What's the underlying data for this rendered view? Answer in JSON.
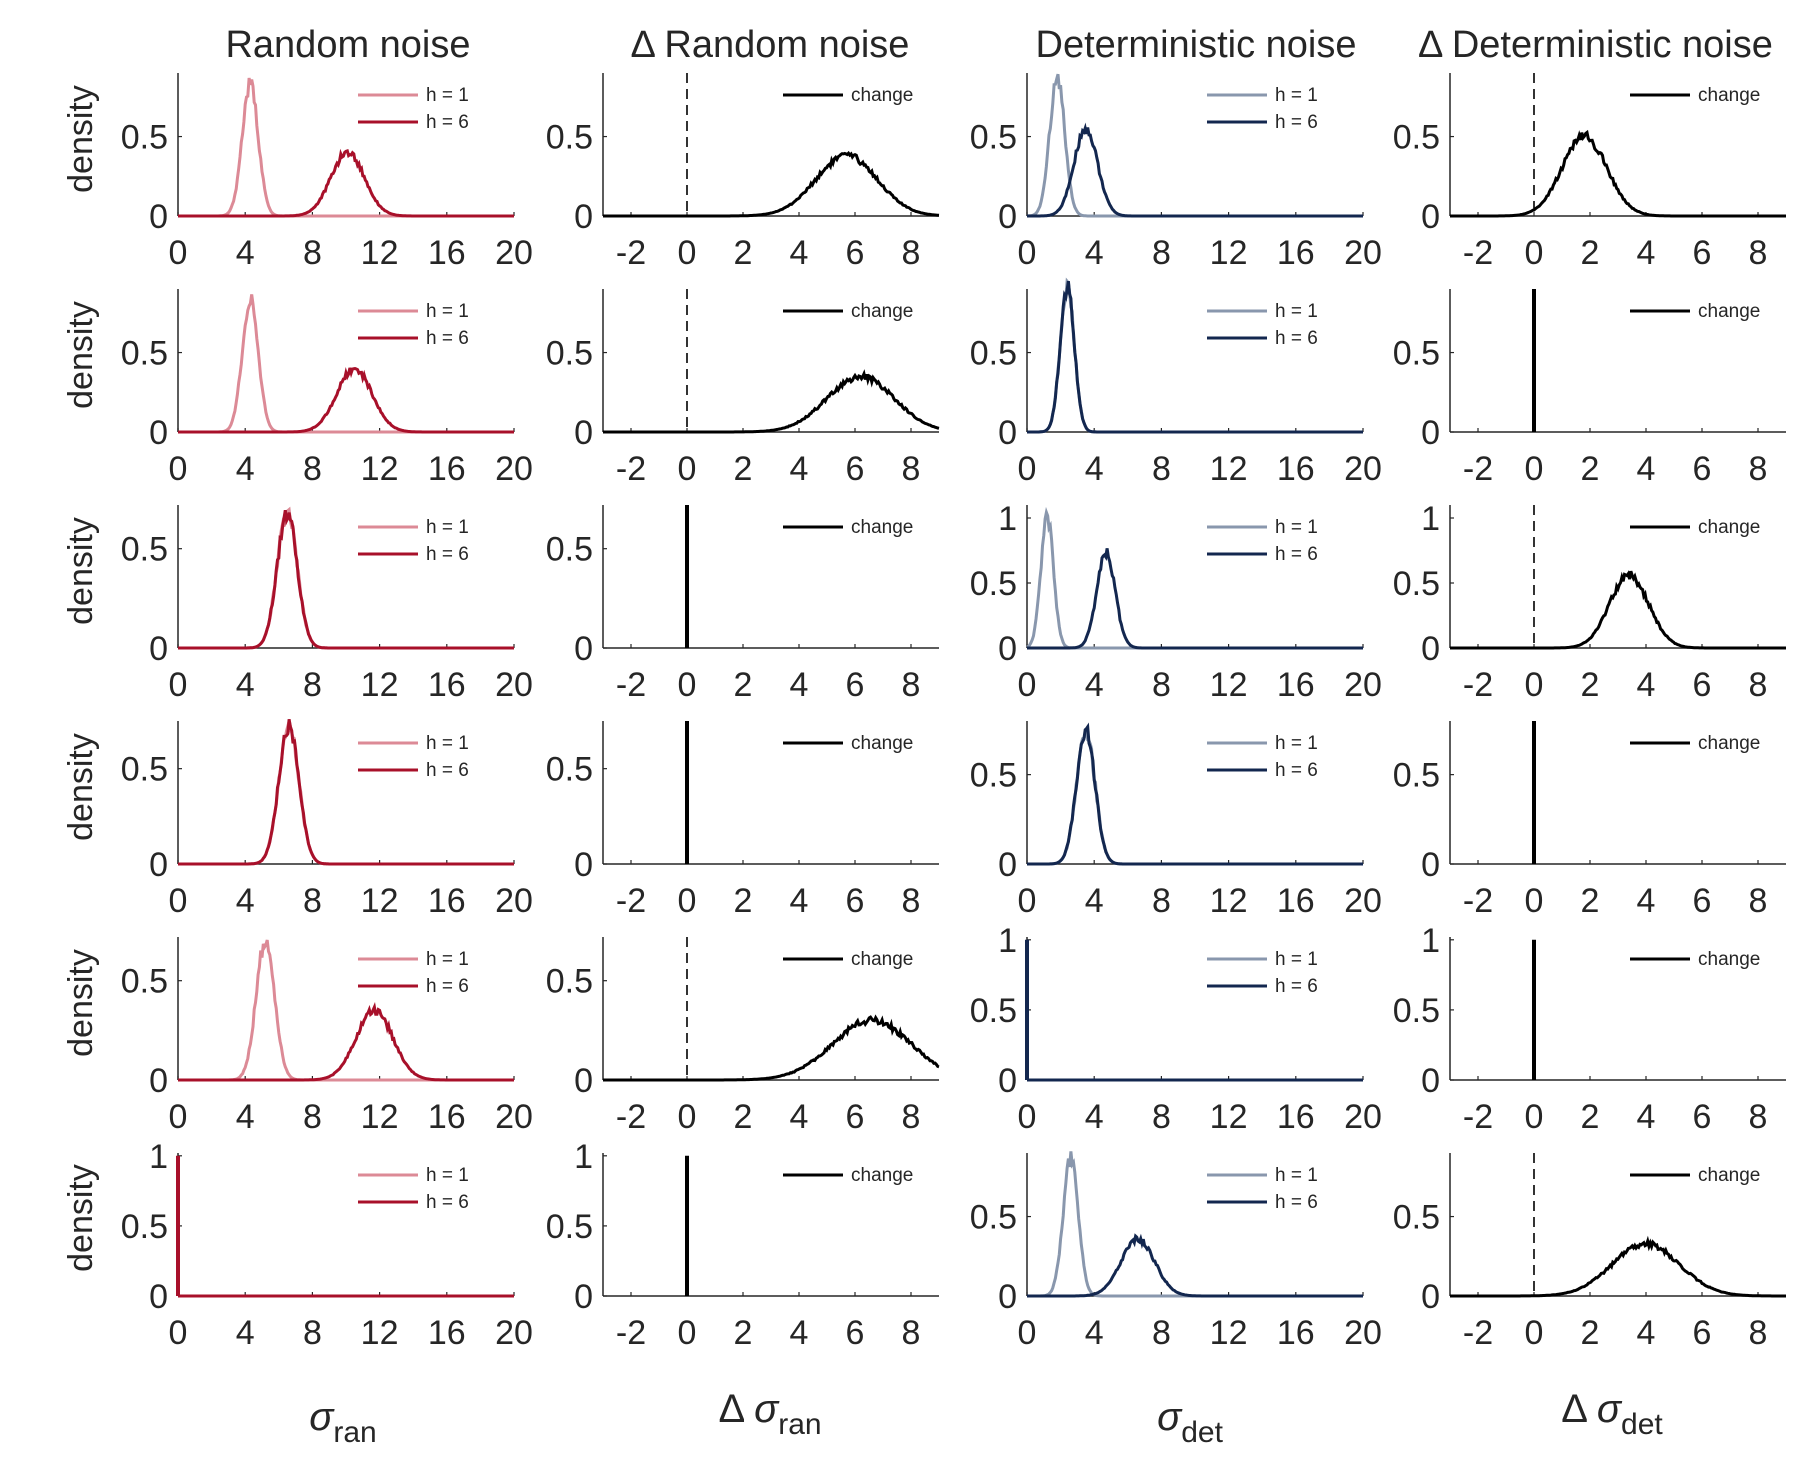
{
  "columns": [
    {
      "title": "Random noise",
      "xlabel_prefix": "",
      "xlabel_symbol": "σ",
      "xlabel_sub": "ran"
    },
    {
      "title": "Δ Random noise",
      "xlabel_prefix": "Δ",
      "xlabel_symbol": "σ",
      "xlabel_sub": "ran"
    },
    {
      "title": "Deterministic noise",
      "xlabel_prefix": "",
      "xlabel_symbol": "σ",
      "xlabel_sub": "det"
    },
    {
      "title": "Δ Deterministic noise",
      "xlabel_prefix": "Δ",
      "xlabel_symbol": "σ",
      "xlabel_sub": "det"
    }
  ],
  "colors": {
    "ran_h1": "#DC8A96",
    "ran_h6": "#A8102A",
    "det_h1": "#8997AD",
    "det_h6": "#13274F",
    "change": "#000000",
    "axis": "#262626"
  },
  "chart_data": {
    "type": "line",
    "ylabel": "density",
    "legend_entries_abs": [
      "h = 1",
      "h = 6"
    ],
    "legend_entry_change": "change",
    "legend_placement": "top-right",
    "grid": false,
    "abs_xlim": [
      0,
      20
    ],
    "abs_xticks": [
      0,
      4,
      8,
      12,
      16,
      20
    ],
    "delta_xlim": [
      -3,
      9
    ],
    "delta_xticks": [
      -2,
      0,
      2,
      4,
      6,
      8
    ],
    "rows": [
      {
        "ran": {
          "ylim": [
            0,
            0.9
          ],
          "yticks": [
            0,
            0.5
          ],
          "h1": {
            "mean": 4.3,
            "sd": 0.48,
            "peak": 0.83
          },
          "h6": {
            "mean": 10.1,
            "sd": 1.0,
            "peak": 0.4
          }
        },
        "dran": {
          "ylim": [
            0,
            0.9
          ],
          "yticks": [
            0,
            0.5
          ],
          "dashed_zero": true,
          "change": {
            "mean": 5.7,
            "sd": 1.1,
            "peak": 0.38
          }
        },
        "det": {
          "ylim": [
            0,
            0.9
          ],
          "yticks": [
            0,
            0.5
          ],
          "h1": {
            "mean": 1.8,
            "sd": 0.45,
            "peak": 0.88
          },
          "h6": {
            "mean": 3.5,
            "sd": 0.7,
            "peak": 0.55
          }
        },
        "ddet": {
          "ylim": [
            0,
            0.9
          ],
          "yticks": [
            0,
            0.5
          ],
          "dashed_zero": true,
          "change": {
            "mean": 1.8,
            "sd": 0.8,
            "peak": 0.5
          }
        }
      },
      {
        "ran": {
          "ylim": [
            0,
            0.9
          ],
          "yticks": [
            0,
            0.5
          ],
          "h1": {
            "mean": 4.3,
            "sd": 0.48,
            "peak": 0.83
          },
          "h6": {
            "mean": 10.5,
            "sd": 1.05,
            "peak": 0.4
          }
        },
        "dran": {
          "ylim": [
            0,
            0.9
          ],
          "yticks": [
            0,
            0.5
          ],
          "dashed_zero": true,
          "change": {
            "mean": 6.2,
            "sd": 1.2,
            "peak": 0.35
          }
        },
        "det": {
          "ylim": [
            0,
            0.9
          ],
          "yticks": [
            0,
            0.5
          ],
          "h1": {
            "mean": 2.4,
            "sd": 0.42,
            "peak": 0.92
          },
          "h6": {
            "mean": 2.4,
            "sd": 0.42,
            "peak": 0.92
          }
        },
        "ddet": {
          "ylim": [
            0,
            0.9
          ],
          "yticks": [
            0,
            0.5
          ],
          "spike": 0.0,
          "spike_h": 0.9
        }
      },
      {
        "ran": {
          "ylim": [
            0,
            0.72
          ],
          "yticks": [
            0,
            0.5
          ],
          "h1": {
            "mean": 6.5,
            "sd": 0.6,
            "peak": 0.68
          },
          "h6": {
            "mean": 6.5,
            "sd": 0.6,
            "peak": 0.68
          }
        },
        "dran": {
          "ylim": [
            0,
            0.72
          ],
          "yticks": [
            0,
            0.5
          ],
          "spike": 0.0,
          "spike_h": 0.72
        },
        "det": {
          "ylim": [
            0,
            1.1
          ],
          "yticks": [
            0,
            0.5,
            1
          ],
          "h1": {
            "mean": 1.2,
            "sd": 0.38,
            "peak": 1.0
          },
          "h6": {
            "mean": 4.7,
            "sd": 0.55,
            "peak": 0.73
          }
        },
        "ddet": {
          "ylim": [
            0,
            1.1
          ],
          "yticks": [
            0,
            0.5,
            1
          ],
          "dashed_zero": true,
          "change": {
            "mean": 3.4,
            "sd": 0.7,
            "peak": 0.56
          }
        }
      },
      {
        "ran": {
          "ylim": [
            0,
            0.75
          ],
          "yticks": [
            0,
            0.5
          ],
          "h1": {
            "mean": 6.6,
            "sd": 0.6,
            "peak": 0.72
          },
          "h6": {
            "mean": 6.6,
            "sd": 0.6,
            "peak": 0.72
          }
        },
        "dran": {
          "ylim": [
            0,
            0.75
          ],
          "yticks": [
            0,
            0.5
          ],
          "spike": 0.0,
          "spike_h": 0.75
        },
        "det": {
          "ylim": [
            0,
            0.8
          ],
          "yticks": [
            0,
            0.5
          ],
          "h1": {
            "mean": 3.5,
            "sd": 0.55,
            "peak": 0.75
          },
          "h6": {
            "mean": 3.5,
            "sd": 0.55,
            "peak": 0.75
          }
        },
        "ddet": {
          "ylim": [
            0,
            0.8
          ],
          "yticks": [
            0,
            0.5
          ],
          "spike": 0.0,
          "spike_h": 0.8
        }
      },
      {
        "ran": {
          "ylim": [
            0,
            0.72
          ],
          "yticks": [
            0,
            0.5
          ],
          "h1": {
            "mean": 5.2,
            "sd": 0.55,
            "peak": 0.7
          },
          "h6": {
            "mean": 11.7,
            "sd": 1.1,
            "peak": 0.35
          }
        },
        "dran": {
          "ylim": [
            0,
            0.72
          ],
          "yticks": [
            0,
            0.5
          ],
          "dashed_zero": true,
          "change": {
            "mean": 6.6,
            "sd": 1.4,
            "peak": 0.3
          }
        },
        "det": {
          "ylim": [
            0,
            1.02
          ],
          "yticks": [
            0,
            0.5,
            1
          ],
          "spike": 0.0,
          "spike_h": 1.0,
          "spike_color": "det_h6"
        },
        "ddet": {
          "ylim": [
            0,
            1.02
          ],
          "yticks": [
            0,
            0.5,
            1
          ],
          "spike": 0.0,
          "spike_h": 1.0
        }
      },
      {
        "ran": {
          "ylim": [
            0,
            1.02
          ],
          "yticks": [
            0,
            0.5,
            1
          ],
          "spike": 0.0,
          "spike_h": 1.0,
          "spike_color": "ran_h6"
        },
        "dran": {
          "ylim": [
            0,
            1.02
          ],
          "yticks": [
            0,
            0.5,
            1
          ],
          "spike": 0.0,
          "spike_h": 1.0
        },
        "det": {
          "ylim": [
            0,
            0.9
          ],
          "yticks": [
            0,
            0.5
          ],
          "h1": {
            "mean": 2.6,
            "sd": 0.45,
            "peak": 0.86
          },
          "h6": {
            "mean": 6.6,
            "sd": 1.0,
            "peak": 0.36
          }
        },
        "ddet": {
          "ylim": [
            0,
            0.9
          ],
          "yticks": [
            0,
            0.5
          ],
          "dashed_zero": true,
          "change": {
            "mean": 4.0,
            "sd": 1.2,
            "peak": 0.33
          }
        }
      }
    ]
  }
}
